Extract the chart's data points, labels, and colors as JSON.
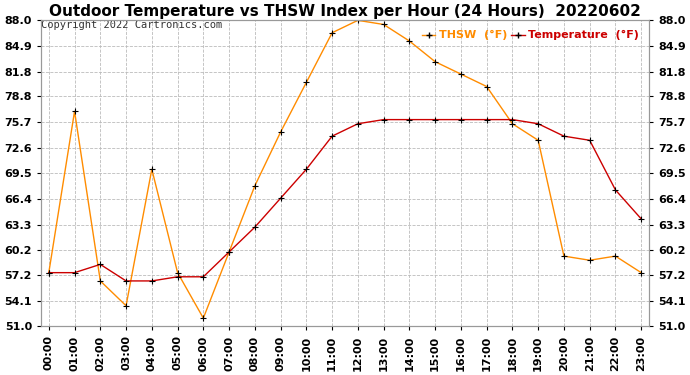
{
  "title": "Outdoor Temperature vs THSW Index per Hour (24 Hours)  20220602",
  "copyright": "Copyright 2022 Cartronics.com",
  "legend_thsw": "THSW  (°F)",
  "legend_temp": "Temperature  (°F)",
  "hours": [
    0,
    1,
    2,
    3,
    4,
    5,
    6,
    7,
    8,
    9,
    10,
    11,
    12,
    13,
    14,
    15,
    16,
    17,
    18,
    19,
    20,
    21,
    22,
    23
  ],
  "thsw": [
    57.5,
    77.0,
    56.5,
    53.5,
    70.0,
    57.5,
    52.0,
    60.0,
    68.0,
    74.5,
    80.5,
    86.5,
    88.0,
    87.5,
    85.5,
    83.0,
    81.5,
    80.0,
    75.5,
    73.5,
    59.5,
    59.0,
    59.5,
    57.5
  ],
  "temperature": [
    57.5,
    57.5,
    58.5,
    56.5,
    56.5,
    57.0,
    57.0,
    60.0,
    63.0,
    66.5,
    70.0,
    74.0,
    75.5,
    76.0,
    76.0,
    76.0,
    76.0,
    76.0,
    76.0,
    75.5,
    74.0,
    73.5,
    67.5,
    64.0
  ],
  "ylim": [
    51.0,
    88.0
  ],
  "yticks": [
    51.0,
    54.1,
    57.2,
    60.2,
    63.3,
    66.4,
    69.5,
    72.6,
    75.7,
    78.8,
    81.8,
    84.9,
    88.0
  ],
  "ytick_labels": [
    "51.0",
    "54.1",
    "57.2",
    "60.2",
    "63.3",
    "66.4",
    "69.5",
    "72.6",
    "75.7",
    "78.8",
    "81.8",
    "84.9",
    "88.0"
  ],
  "thsw_color": "#FF8C00",
  "temp_color": "#CC0000",
  "marker_color": "#000000",
  "grid_color": "#BBBBBB",
  "background_color": "#FFFFFF",
  "title_fontsize": 11,
  "tick_fontsize": 8,
  "legend_fontsize": 8,
  "copyright_fontsize": 7.5
}
